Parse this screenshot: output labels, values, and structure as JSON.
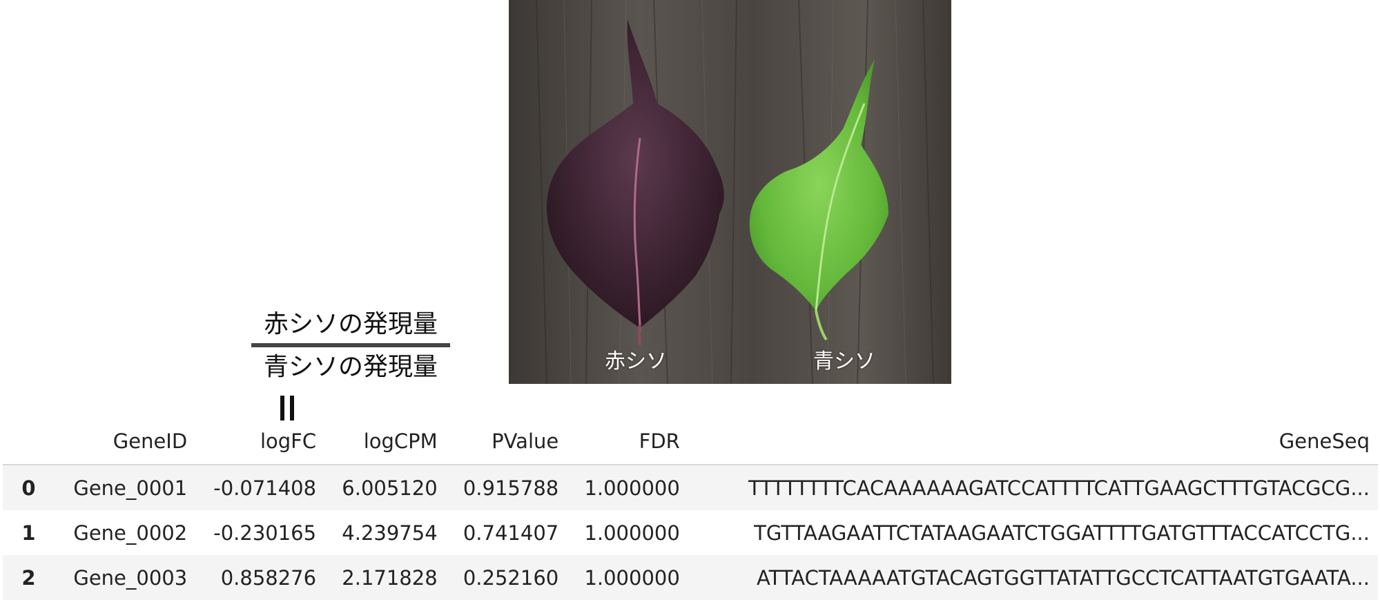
{
  "photo": {
    "label_red": "赤シソ",
    "label_green": "青シソ"
  },
  "fraction": {
    "numerator": "赤シソの発現量",
    "denominator": "青シソの発現量"
  },
  "table": {
    "columns": [
      "",
      "GeneID",
      "logFC",
      "logCPM",
      "PValue",
      "FDR",
      "GeneSeq"
    ],
    "rows": [
      {
        "index": "0",
        "GeneID": "Gene_0001",
        "logFC": "-0.071408",
        "logCPM": "6.005120",
        "PValue": "0.915788",
        "FDR": "1.000000",
        "GeneSeq": "TTTTTTTTCACAAAAAAGATCCATTTTCATTGAAGCTTTGTACGCG..."
      },
      {
        "index": "1",
        "GeneID": "Gene_0002",
        "logFC": "-0.230165",
        "logCPM": "4.239754",
        "PValue": "0.741407",
        "FDR": "1.000000",
        "GeneSeq": "TGTTAAGAATTCTATAAGAATCTGGATTTTGATGTTTACCATCCTG..."
      },
      {
        "index": "2",
        "GeneID": "Gene_0003",
        "logFC": "0.858276",
        "logCPM": "2.171828",
        "PValue": "0.252160",
        "FDR": "1.000000",
        "GeneSeq": "ATTACTAAAAATGTACAGTGGTTATATTGCCTCATTAATGTGAATA..."
      }
    ]
  }
}
